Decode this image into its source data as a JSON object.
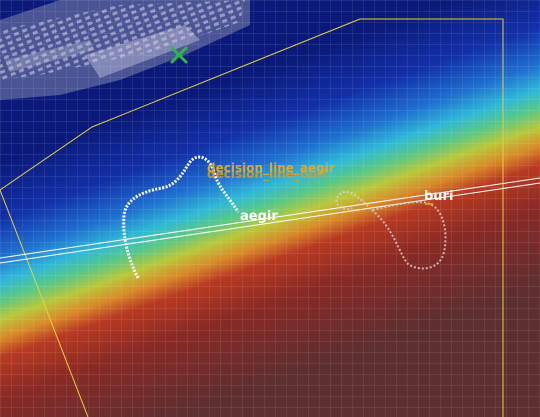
{
  "map": {
    "labels": {
      "decision_line_aegir": "decision_line_aegir",
      "decision_line_buri": "decision_line_buri",
      "aegir": "aegir",
      "buri": "buri"
    },
    "colors": {
      "zone_border": "#e6d23c",
      "decision_label": "#c8a032",
      "track_aegir": "#ffffff",
      "track_buri": "#d8d8d8",
      "marker": "#2fb84a",
      "line": "#ffffff"
    },
    "icons": [
      "x-marker-icon"
    ]
  }
}
